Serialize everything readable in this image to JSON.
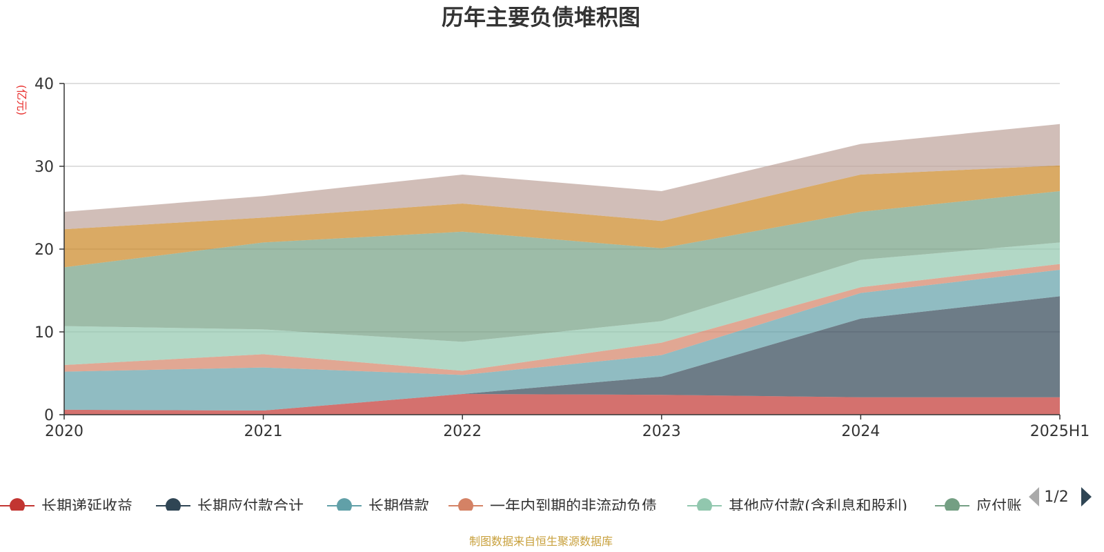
{
  "chart_data": {
    "type": "area",
    "stacked": true,
    "title": "历年主要负债堆积图",
    "ylabel": "(亿元)",
    "xlabel": "",
    "categories": [
      "2020",
      "2021",
      "2022",
      "2023",
      "2024",
      "2025H1"
    ],
    "ylim": [
      0,
      40
    ],
    "yticks": [
      "0",
      "10",
      "20",
      "30",
      "40"
    ],
    "grid": true,
    "series": [
      {
        "name": "长期递延收益",
        "color": "#c23531",
        "values": [
          0.6,
          0.5,
          2.5,
          2.4,
          2.1,
          2.1
        ]
      },
      {
        "name": "长期应付款合计",
        "color": "#2f4554",
        "values": [
          0.0,
          0.0,
          0.0,
          2.2,
          9.5,
          12.2
        ]
      },
      {
        "name": "长期借款",
        "color": "#61a0a8",
        "values": [
          4.6,
          5.2,
          2.3,
          2.6,
          3.1,
          3.2
        ]
      },
      {
        "name": "一年内到期的非流动负债",
        "color": "#d48265",
        "values": [
          0.8,
          1.6,
          0.5,
          1.5,
          0.7,
          0.7
        ]
      },
      {
        "name": "其他应付款(含利息和股利)",
        "color": "#91c7ae",
        "values": [
          4.7,
          3.0,
          3.5,
          2.6,
          3.3,
          2.6
        ]
      },
      {
        "name": "应付账款",
        "color": "#749f83",
        "values": [
          7.1,
          10.5,
          13.3,
          8.8,
          5.8,
          6.2
        ]
      },
      {
        "name": "",
        "color": "#ca8622",
        "values": [
          4.6,
          3.0,
          3.4,
          3.3,
          4.5,
          3.1
        ]
      },
      {
        "name": "",
        "color": "#bda29a",
        "values": [
          2.1,
          2.6,
          3.5,
          3.6,
          3.7,
          5.0
        ]
      }
    ],
    "legend_position": "bottom",
    "legend_visible": [
      "长期递延收益",
      "长期应付款合计",
      "长期借款",
      "一年内到期的非流动负债",
      "其他应付款(含利息和股利)",
      "应付账"
    ],
    "legend_page": "1/2",
    "source": "制图数据来自恒生聚源数据库"
  }
}
